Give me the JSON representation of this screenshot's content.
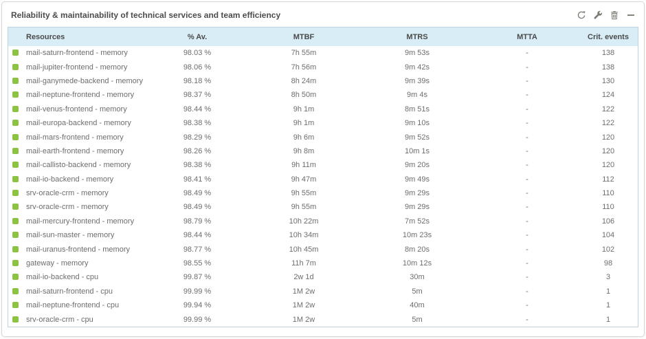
{
  "widget": {
    "title": "Reliability & maintainability of technical services and team efficiency",
    "toolbar_icons": [
      "refresh-icon",
      "wrench-icon",
      "trash-icon",
      "collapse-icon"
    ]
  },
  "colors": {
    "status_ok": "#8cc342",
    "header_bg": "#d9edf7",
    "table_border": "#bcd2e0",
    "icon_gray": "#7d7d74"
  },
  "table": {
    "columns": [
      "Resources",
      "% Av.",
      "MTBF",
      "MTRS",
      "MTTA",
      "Crit. events"
    ],
    "rows": [
      {
        "status": "ok",
        "resource": "mail-saturn-frontend - memory",
        "availability": "98.03 %",
        "mtbf": "7h 55m",
        "mtrs": "9m 53s",
        "mtta": "-",
        "crit_events": "138"
      },
      {
        "status": "ok",
        "resource": "mail-jupiter-frontend - memory",
        "availability": "98.06 %",
        "mtbf": "7h 56m",
        "mtrs": "9m 42s",
        "mtta": "-",
        "crit_events": "138"
      },
      {
        "status": "ok",
        "resource": "mail-ganymede-backend - memory",
        "availability": "98.18 %",
        "mtbf": "8h 24m",
        "mtrs": "9m 39s",
        "mtta": "-",
        "crit_events": "130"
      },
      {
        "status": "ok",
        "resource": "mail-neptune-frontend - memory",
        "availability": "98.37 %",
        "mtbf": "8h 50m",
        "mtrs": "9m 4s",
        "mtta": "-",
        "crit_events": "124"
      },
      {
        "status": "ok",
        "resource": "mail-venus-frontend - memory",
        "availability": "98.44 %",
        "mtbf": "9h 1m",
        "mtrs": "8m 51s",
        "mtta": "-",
        "crit_events": "122"
      },
      {
        "status": "ok",
        "resource": "mail-europa-backend - memory",
        "availability": "98.38 %",
        "mtbf": "9h 1m",
        "mtrs": "9m 10s",
        "mtta": "-",
        "crit_events": "122"
      },
      {
        "status": "ok",
        "resource": "mail-mars-frontend - memory",
        "availability": "98.29 %",
        "mtbf": "9h 6m",
        "mtrs": "9m 52s",
        "mtta": "-",
        "crit_events": "120"
      },
      {
        "status": "ok",
        "resource": "mail-earth-frontend - memory",
        "availability": "98.26 %",
        "mtbf": "9h 8m",
        "mtrs": "10m 1s",
        "mtta": "-",
        "crit_events": "120"
      },
      {
        "status": "ok",
        "resource": "mail-callisto-backend - memory",
        "availability": "98.38 %",
        "mtbf": "9h 11m",
        "mtrs": "9m 20s",
        "mtta": "-",
        "crit_events": "120"
      },
      {
        "status": "ok",
        "resource": "mail-io-backend - memory",
        "availability": "98.41 %",
        "mtbf": "9h 47m",
        "mtrs": "9m 49s",
        "mtta": "-",
        "crit_events": "112"
      },
      {
        "status": "ok",
        "resource": "srv-oracle-crm - memory",
        "availability": "98.49 %",
        "mtbf": "9h 55m",
        "mtrs": "9m 29s",
        "mtta": "-",
        "crit_events": "110"
      },
      {
        "status": "ok",
        "resource": "srv-oracle-crm - memory",
        "availability": "98.49 %",
        "mtbf": "9h 55m",
        "mtrs": "9m 29s",
        "mtta": "-",
        "crit_events": "110"
      },
      {
        "status": "ok",
        "resource": "mail-mercury-frontend - memory",
        "availability": "98.79 %",
        "mtbf": "10h 22m",
        "mtrs": "7m 52s",
        "mtta": "-",
        "crit_events": "106"
      },
      {
        "status": "ok",
        "resource": "mail-sun-master - memory",
        "availability": "98.44 %",
        "mtbf": "10h 34m",
        "mtrs": "10m 23s",
        "mtta": "-",
        "crit_events": "104"
      },
      {
        "status": "ok",
        "resource": "mail-uranus-frontend - memory",
        "availability": "98.77 %",
        "mtbf": "10h 45m",
        "mtrs": "8m 20s",
        "mtta": "-",
        "crit_events": "102"
      },
      {
        "status": "ok",
        "resource": "gateway - memory",
        "availability": "98.55 %",
        "mtbf": "11h 7m",
        "mtrs": "10m 12s",
        "mtta": "-",
        "crit_events": "98"
      },
      {
        "status": "ok",
        "resource": "mail-io-backend - cpu",
        "availability": "99.87 %",
        "mtbf": "2w 1d",
        "mtrs": "30m",
        "mtta": "-",
        "crit_events": "3"
      },
      {
        "status": "ok",
        "resource": "mail-saturn-frontend - cpu",
        "availability": "99.99 %",
        "mtbf": "1M 2w",
        "mtrs": "5m",
        "mtta": "-",
        "crit_events": "1"
      },
      {
        "status": "ok",
        "resource": "mail-neptune-frontend - cpu",
        "availability": "99.94 %",
        "mtbf": "1M 2w",
        "mtrs": "40m",
        "mtta": "-",
        "crit_events": "1"
      },
      {
        "status": "ok",
        "resource": "srv-oracle-crm - cpu",
        "availability": "99.99 %",
        "mtbf": "1M 2w",
        "mtrs": "5m",
        "mtta": "-",
        "crit_events": "1"
      }
    ]
  }
}
